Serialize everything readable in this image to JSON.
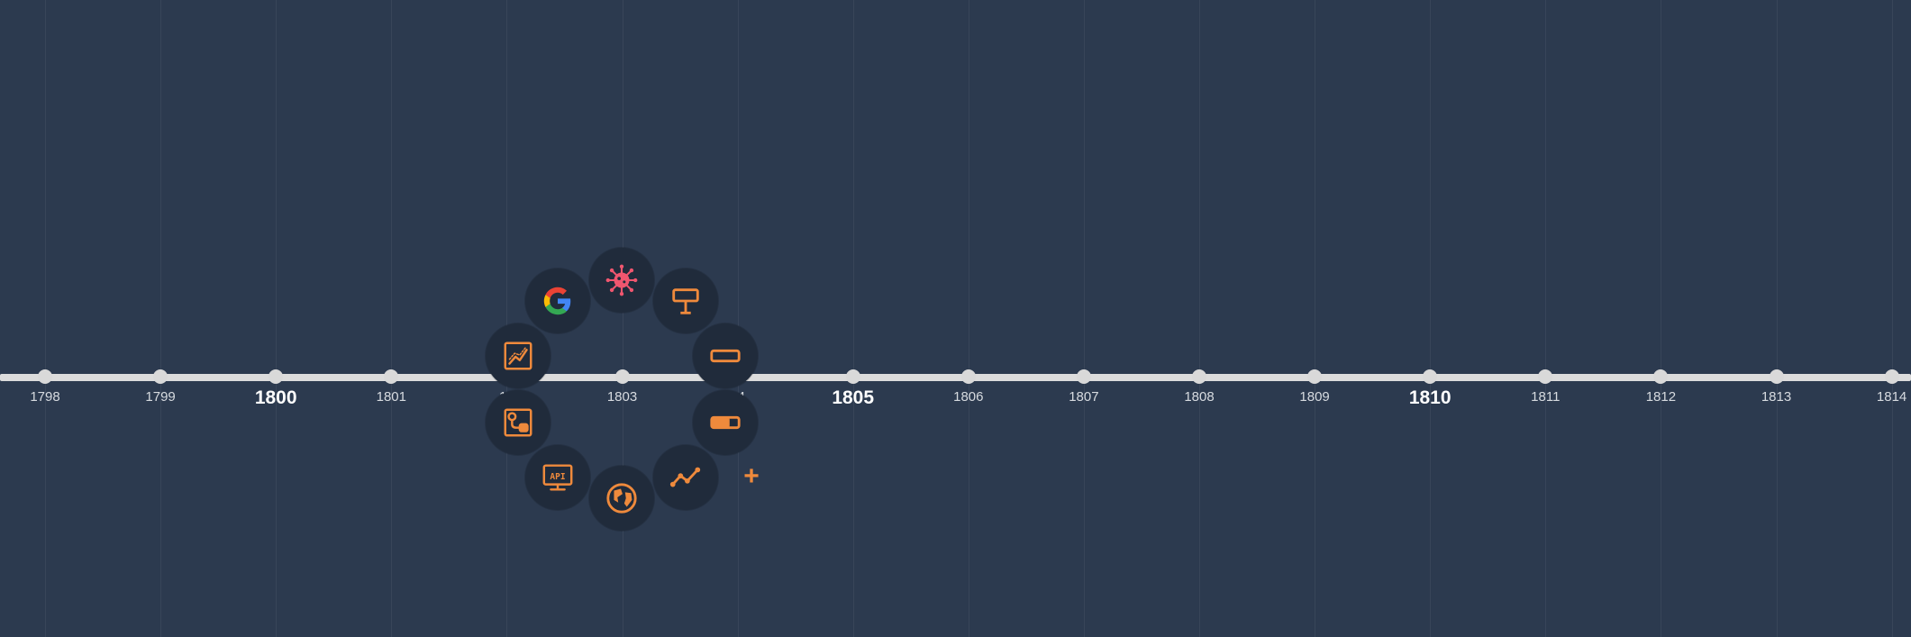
{
  "timeline": {
    "years": [
      {
        "label": "1798",
        "major": false
      },
      {
        "label": "1799",
        "major": false
      },
      {
        "label": "1800",
        "major": true
      },
      {
        "label": "1801",
        "major": false
      },
      {
        "label": "18",
        "major": false
      },
      {
        "label": "1803",
        "major": false
      },
      {
        "label": "04",
        "major": false
      },
      {
        "label": "1805",
        "major": true
      },
      {
        "label": "1806",
        "major": false
      },
      {
        "label": "1807",
        "major": false
      },
      {
        "label": "1808",
        "major": false
      },
      {
        "label": "1809",
        "major": false
      },
      {
        "label": "1810",
        "major": true
      },
      {
        "label": "1811",
        "major": false
      },
      {
        "label": "1812",
        "major": false
      },
      {
        "label": "1813",
        "major": false
      },
      {
        "label": "1814",
        "major": false
      }
    ]
  },
  "radial_menu": {
    "items": [
      {
        "name": "virus-icon"
      },
      {
        "name": "signpost-icon"
      },
      {
        "name": "text-field-icon"
      },
      {
        "name": "toggle-icon"
      },
      {
        "name": "trend-line-icon"
      },
      {
        "name": "globe-icon"
      },
      {
        "name": "api-monitor-icon"
      },
      {
        "name": "map-route-icon"
      },
      {
        "name": "line-chart-icon"
      },
      {
        "name": "google-icon"
      }
    ],
    "add_label": "+"
  },
  "colors": {
    "background": "#2c3a4f",
    "timeline": "#dcdcdc",
    "accent": "#ef8a3c",
    "virus": "#f0566f",
    "button_bg": "#202b3b"
  }
}
